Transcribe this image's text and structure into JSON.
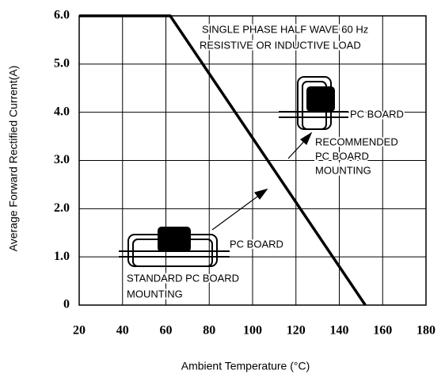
{
  "chart_data": {
    "type": "line",
    "x_label": "Ambient Temperature (°C)",
    "y_label": "Average Forward Rectified Current(A)",
    "x": [
      20,
      62,
      152
    ],
    "values": [
      6,
      6,
      0
    ],
    "color": "#000000",
    "xlim": [
      20,
      180
    ],
    "xticks": [
      20,
      40,
      60,
      80,
      100,
      120,
      140,
      160,
      180
    ],
    "ylim": [
      0,
      6
    ],
    "yticks": [
      0,
      {
        "value": 1,
        "label": "1.0"
      },
      {
        "value": 2,
        "label": "2.0"
      },
      {
        "value": 3,
        "label": "3.0"
      },
      {
        "value": 4,
        "label": "4.0"
      },
      {
        "value": 5,
        "label": "5.0"
      },
      {
        "value": 6,
        "label": "6.0"
      }
    ],
    "grid": true,
    "annotations": [
      "SINGLE PHASE HALF WAVE 60 Hz",
      "RESISTIVE OR INDUCTIVE LOAD",
      "PC BOARD",
      "RECOMMENDED",
      "PC BOARD",
      "MOUNTING",
      "PC BOARD",
      "STANDARD PC BOARD",
      "MOUNTING"
    ]
  }
}
